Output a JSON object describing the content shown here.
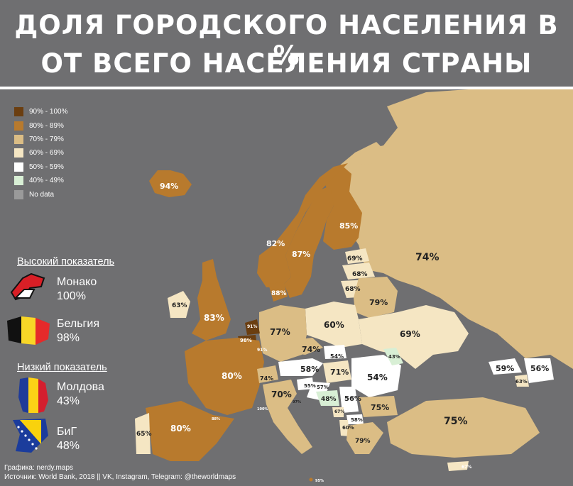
{
  "title": {
    "line1": "ДОЛЯ ГОРОДСКОГО НАСЕЛЕНИЯ В %",
    "line2": "ОТ ВСЕГО НАСЕЛЕНИЯ СТРАНЫ"
  },
  "legend": [
    {
      "label": "90% - 100%",
      "color": "#6b3e10"
    },
    {
      "label": "80% - 89%",
      "color": "#b87a2d"
    },
    {
      "label": "70% - 79%",
      "color": "#dbbd85"
    },
    {
      "label": "60% - 69%",
      "color": "#f5e6c3"
    },
    {
      "label": "50% - 59%",
      "color": "#ffffff"
    },
    {
      "label": "40% - 49%",
      "color": "#d8efd5"
    },
    {
      "label": "No data",
      "color": "#9a9a9a"
    }
  ],
  "high": {
    "heading": "Высокий показатель",
    "items": [
      {
        "name": "Монако",
        "value": "100%",
        "icon": "monaco-flag-icon"
      },
      {
        "name": "Бельгия",
        "value": "98%",
        "icon": "belgium-flag-icon"
      }
    ]
  },
  "low": {
    "heading": "Низкий показатель",
    "items": [
      {
        "name": "Молдова",
        "value": "43%",
        "icon": "moldova-flag-icon"
      },
      {
        "name": "БиГ",
        "value": "48%",
        "icon": "bosnia-flag-icon"
      }
    ]
  },
  "footer": {
    "line1": "Графика: nerdy.maps",
    "line2": "Источник: World Bank, 2018 || VK, Instagram, Telegram: @theworldmaps"
  },
  "map_labels": {
    "iceland": "94%",
    "norway": "82%",
    "sweden": "87%",
    "finland": "85%",
    "russia": "74%",
    "estonia": "69%",
    "latvia": "68%",
    "lithuania": "68%",
    "belarus": "79%",
    "denmark": "88%",
    "ireland": "63%",
    "uk": "83%",
    "netherlands": "91%",
    "belgium": "98%",
    "luxembourg": "91%",
    "germany": "77%",
    "poland": "60%",
    "ukraine": "69%",
    "czechia": "74%",
    "slovakia": "54%",
    "moldova": "43%",
    "france": "80%",
    "switzerland": "74%",
    "austria": "58%",
    "hungary": "71%",
    "romania": "54%",
    "slovenia": "55%",
    "croatia": "57%",
    "bosnia": "48%",
    "serbia": "56%",
    "bulgaria": "75%",
    "montenegro": "67%",
    "north_macedonia": "58%",
    "albania": "60%",
    "greece": "79%",
    "italy": "70%",
    "san_marino": "97%",
    "monaco": "100%",
    "andorra": "88%",
    "spain": "80%",
    "portugal": "65%",
    "turkey": "75%",
    "georgia": "59%",
    "azerbaijan": "56%",
    "armenia": "63%",
    "cyprus": "67%",
    "malta": "95%"
  }
}
